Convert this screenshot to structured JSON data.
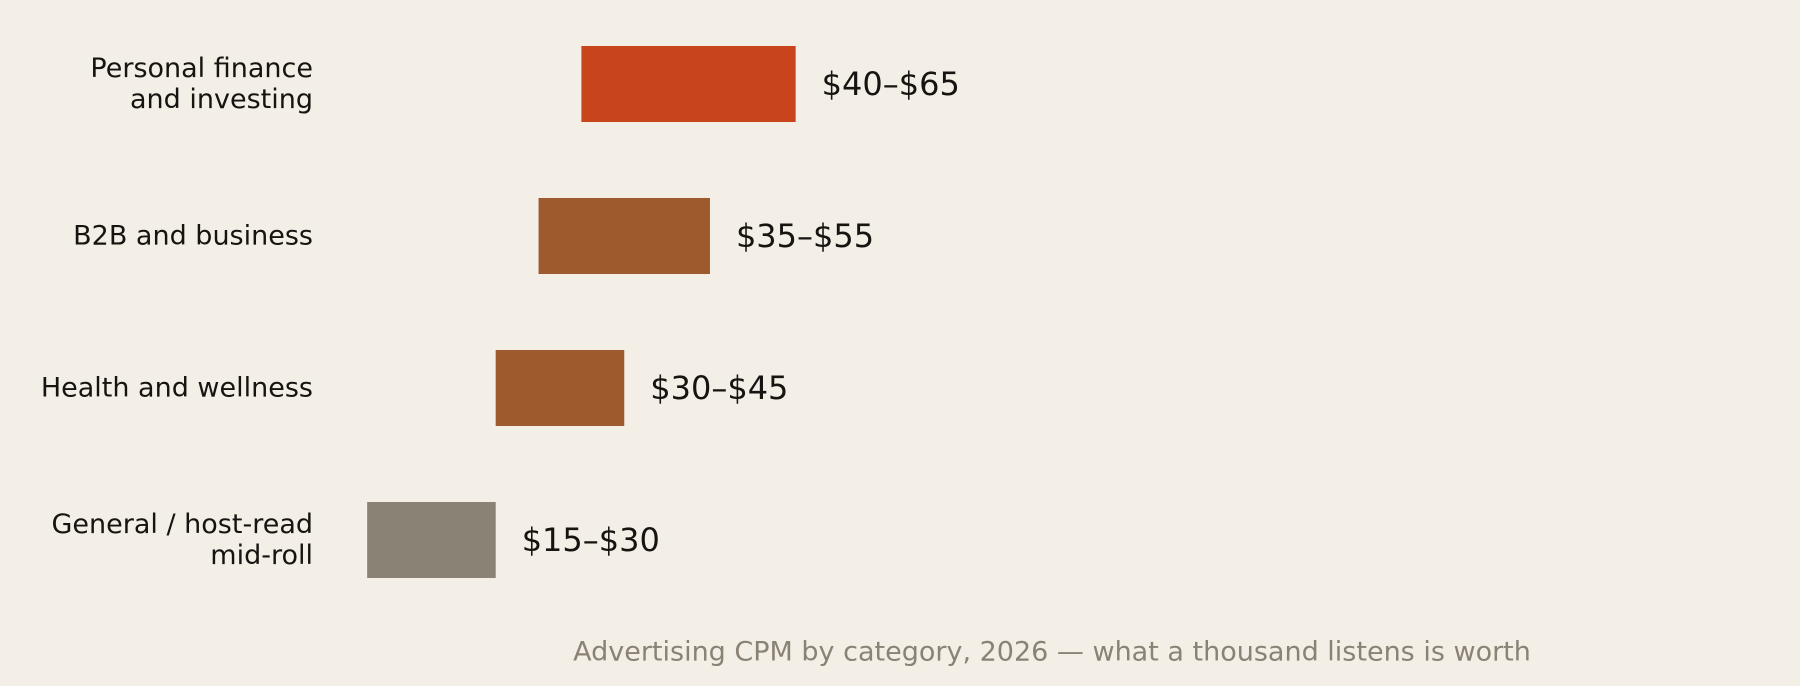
{
  "chart_data": {
    "type": "bar",
    "orientation": "horizontal-range",
    "categories": [
      [
        "Personal finance",
        "and investing"
      ],
      [
        "B2B and business"
      ],
      [
        "Health and wellness"
      ],
      [
        "General / host-read",
        "mid-roll"
      ]
    ],
    "series": [
      {
        "ranges": [
          [
            40,
            65
          ],
          [
            35,
            55
          ],
          [
            30,
            45
          ],
          [
            15,
            30
          ]
        ]
      }
    ],
    "value_labels": [
      "$40–$65",
      "$35–$55",
      "$30–$45",
      "$15–$30"
    ],
    "colors": [
      "#c8441c",
      "#9e592c",
      "#9e592c",
      "#8a8274"
    ],
    "title": "",
    "caption": "Advertising CPM by category, 2026 — what a thousand listens is worth",
    "xlabel": "",
    "ylabel": "",
    "unit": "$",
    "grid": false,
    "legend": "none"
  }
}
